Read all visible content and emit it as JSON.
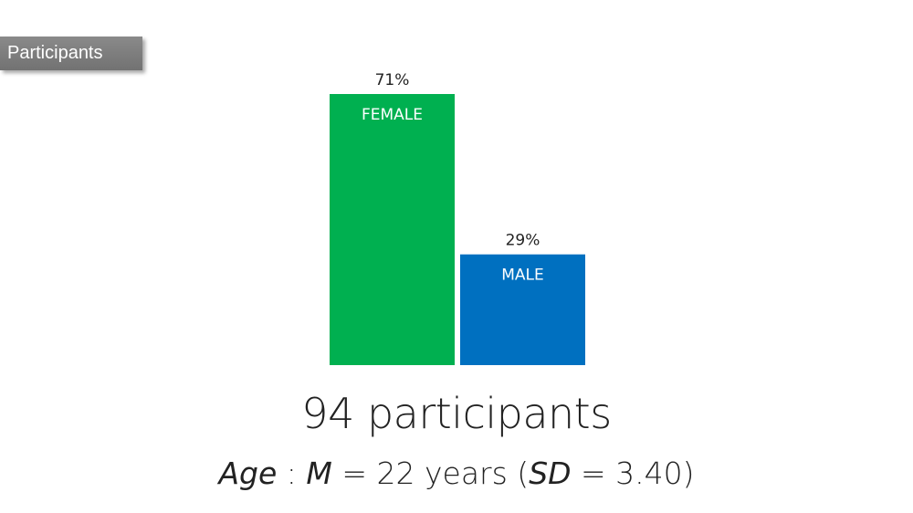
{
  "section_tag": "Participants",
  "colors": {
    "female": "#00b050",
    "male": "#0070c0",
    "tag_bg": "#7f7f7f"
  },
  "chart_data": {
    "type": "bar",
    "categories": [
      "FEMALE",
      "MALE"
    ],
    "values": [
      71,
      29
    ],
    "value_labels": [
      "71%",
      "29%"
    ],
    "unit": "%",
    "ylim": [
      0,
      71
    ],
    "grid": false,
    "legend": "none"
  },
  "summary": {
    "count_text": "94 participants",
    "age_label": "Age",
    "age_sep": " : ",
    "mean_symbol": "M",
    "mean_value": " = 22 years (",
    "sd_symbol": "SD",
    "sd_value": " = 3.40)"
  }
}
